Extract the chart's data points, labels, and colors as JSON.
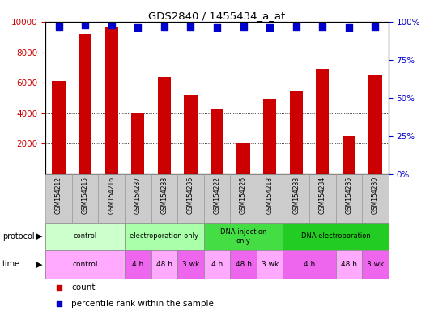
{
  "title": "GDS2840 / 1455434_a_at",
  "samples": [
    "GSM154212",
    "GSM154215",
    "GSM154216",
    "GSM154237",
    "GSM154238",
    "GSM154236",
    "GSM154222",
    "GSM154226",
    "GSM154218",
    "GSM154233",
    "GSM154234",
    "GSM154235",
    "GSM154230"
  ],
  "counts": [
    6100,
    9200,
    9700,
    4000,
    6400,
    5200,
    4300,
    2100,
    4950,
    5500,
    6900,
    2500,
    6500
  ],
  "percentiles": [
    97,
    98,
    98,
    96,
    97,
    97,
    96,
    97,
    96,
    97,
    97,
    96,
    97
  ],
  "bar_color": "#cc0000",
  "dot_color": "#0000cc",
  "ylim_left": [
    0,
    10000
  ],
  "ylim_right": [
    0,
    100
  ],
  "yticks_left": [
    2000,
    4000,
    6000,
    8000,
    10000
  ],
  "yticks_right": [
    0,
    25,
    50,
    75,
    100
  ],
  "protocol_groups": [
    {
      "label": "control",
      "start": 0,
      "end": 3,
      "color": "#ccffcc"
    },
    {
      "label": "electroporation only",
      "start": 3,
      "end": 6,
      "color": "#aaffaa"
    },
    {
      "label": "DNA injection\nonly",
      "start": 6,
      "end": 9,
      "color": "#44dd44"
    },
    {
      "label": "DNA electroporation",
      "start": 9,
      "end": 13,
      "color": "#22cc22"
    }
  ],
  "time_groups": [
    {
      "label": "control",
      "start": 0,
      "end": 3,
      "color": "#ffaaff"
    },
    {
      "label": "4 h",
      "start": 3,
      "end": 4,
      "color": "#ee66ee"
    },
    {
      "label": "48 h",
      "start": 4,
      "end": 5,
      "color": "#ffaaff"
    },
    {
      "label": "3 wk",
      "start": 5,
      "end": 6,
      "color": "#ee66ee"
    },
    {
      "label": "4 h",
      "start": 6,
      "end": 7,
      "color": "#ffaaff"
    },
    {
      "label": "48 h",
      "start": 7,
      "end": 8,
      "color": "#ee66ee"
    },
    {
      "label": "3 wk",
      "start": 8,
      "end": 9,
      "color": "#ffaaff"
    },
    {
      "label": "4 h",
      "start": 9,
      "end": 11,
      "color": "#ee66ee"
    },
    {
      "label": "48 h",
      "start": 11,
      "end": 12,
      "color": "#ffaaff"
    },
    {
      "label": "3 wk",
      "start": 12,
      "end": 13,
      "color": "#ee66ee"
    }
  ],
  "legend_count_color": "#cc0000",
  "legend_dot_color": "#0000cc",
  "legend_count_label": "count",
  "legend_dot_label": "percentile rank within the sample",
  "bg_color": "#ffffff",
  "tick_label_color_left": "#cc0000",
  "tick_label_color_right": "#0000cc",
  "bar_width": 0.5,
  "dot_size": 28,
  "dot_marker": "s",
  "sample_box_color": "#cccccc",
  "sample_box_edge": "#999999"
}
